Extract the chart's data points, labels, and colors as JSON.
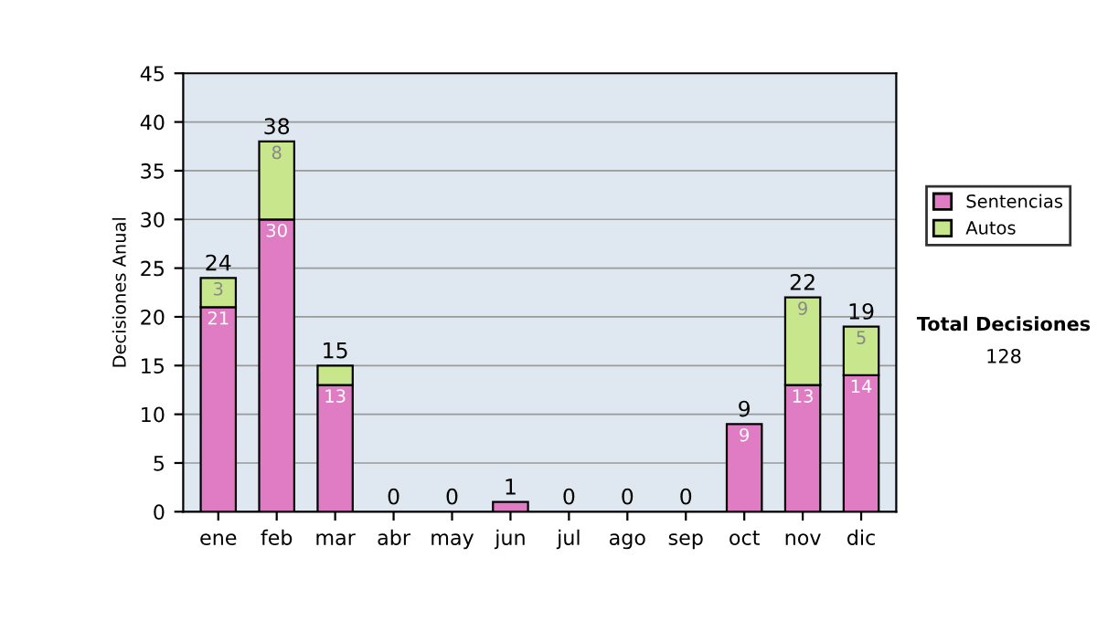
{
  "chart_data": {
    "type": "bar",
    "stacked": true,
    "ylabel": "Decisiones Anual",
    "categories": [
      "ene",
      "feb",
      "mar",
      "abr",
      "may",
      "jun",
      "jul",
      "ago",
      "sep",
      "oct",
      "nov",
      "dic"
    ],
    "series": [
      {
        "name": "Sentencias",
        "color": "#e07cc4",
        "values": [
          21,
          30,
          13,
          0,
          0,
          1,
          0,
          0,
          0,
          9,
          13,
          14
        ],
        "value_labels": [
          "21",
          "30",
          "13",
          null,
          null,
          null,
          null,
          null,
          null,
          "9",
          "13",
          "14"
        ]
      },
      {
        "name": "Autos",
        "color": "#c8e68c",
        "values": [
          3,
          8,
          2,
          0,
          0,
          0,
          0,
          0,
          0,
          0,
          9,
          5
        ],
        "value_labels": [
          "3",
          "8",
          null,
          null,
          null,
          null,
          null,
          null,
          null,
          null,
          "9",
          "5"
        ]
      }
    ],
    "totals": [
      "24",
      "38",
      "15",
      "0",
      "0",
      "1",
      "0",
      "0",
      "0",
      "9",
      "22",
      "19"
    ],
    "ylim": [
      0,
      45
    ],
    "yticks": [
      0,
      5,
      10,
      15,
      20,
      25,
      30,
      35,
      40,
      45
    ],
    "grid": "y",
    "legend": "right",
    "annotations": [
      "Total Decisiones",
      "128"
    ]
  }
}
